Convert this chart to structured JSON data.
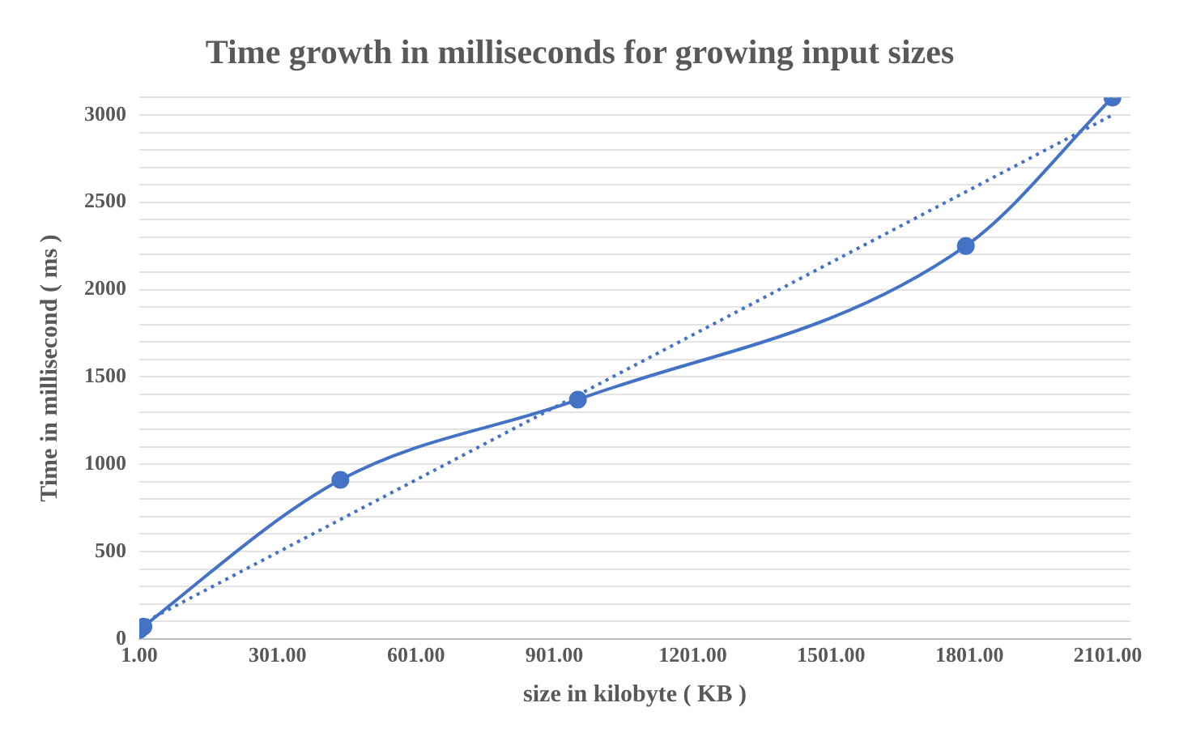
{
  "chart_data": {
    "type": "line",
    "title": "Time growth in milliseconds for growing input sizes",
    "xlabel": "size in kilobyte ( KB )",
    "ylabel": "Time in millisecond ( ms )",
    "series": [
      {
        "type": "line",
        "color": "#4472c4",
        "marker": "circle",
        "line_style": "solid",
        "x": [
          1,
          10,
          437,
          952,
          1793,
          2111
        ],
        "values": [
          50,
          70,
          910,
          1370,
          2250,
          3100
        ]
      },
      {
        "type": "line",
        "color": "#4472c4",
        "marker": "none",
        "line_style": "dotted",
        "x": [
          1,
          2111
        ],
        "values": [
          80,
          3000
        ]
      }
    ],
    "xlim": [
      1,
      2150
    ],
    "xticks": [
      {
        "value": 1,
        "label": "1.00"
      },
      {
        "value": 301,
        "label": "301.00"
      },
      {
        "value": 601,
        "label": "601.00"
      },
      {
        "value": 901,
        "label": "901.00"
      },
      {
        "value": 1201,
        "label": "1201.00"
      },
      {
        "value": 1501,
        "label": "1501.00"
      },
      {
        "value": 1801,
        "label": "1801.00"
      },
      {
        "value": 2101,
        "label": "2101.00"
      }
    ],
    "ylim": [
      0,
      3100
    ],
    "yticks": [
      0,
      {
        "value": 100,
        "label": null
      },
      {
        "value": 200,
        "label": null
      },
      {
        "value": 300,
        "label": null
      },
      {
        "value": 400,
        "label": null
      },
      500,
      {
        "value": 600,
        "label": null
      },
      {
        "value": 700,
        "label": null
      },
      {
        "value": 800,
        "label": null
      },
      {
        "value": 900,
        "label": null
      },
      1000,
      {
        "value": 1100,
        "label": null
      },
      {
        "value": 1200,
        "label": null
      },
      {
        "value": 1300,
        "label": null
      },
      {
        "value": 1400,
        "label": null
      },
      1500,
      {
        "value": 1600,
        "label": null
      },
      {
        "value": 1700,
        "label": null
      },
      {
        "value": 1800,
        "label": null
      },
      {
        "value": 1900,
        "label": null
      },
      2000,
      {
        "value": 2100,
        "label": null
      },
      {
        "value": 2200,
        "label": null
      },
      {
        "value": 2300,
        "label": null
      },
      {
        "value": 2400,
        "label": null
      },
      2500,
      {
        "value": 2600,
        "label": null
      },
      {
        "value": 2700,
        "label": null
      },
      {
        "value": 2800,
        "label": null
      },
      {
        "value": 2900,
        "label": null
      },
      3000,
      {
        "value": 3100,
        "label": null
      }
    ],
    "grid": "y",
    "legend": false
  }
}
